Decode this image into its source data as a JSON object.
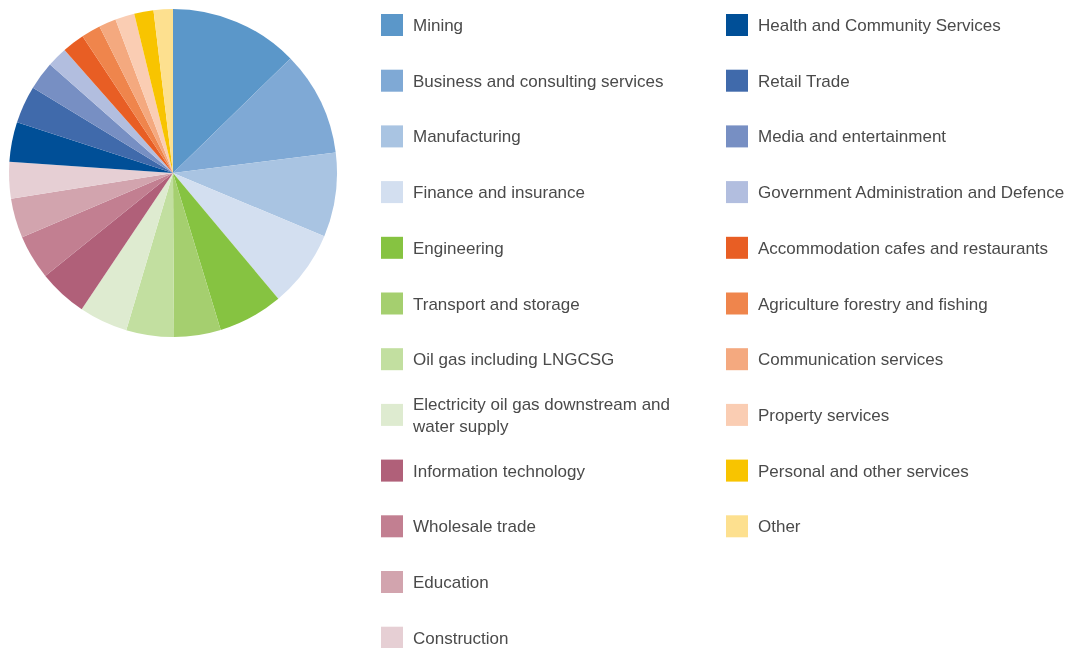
{
  "chart_data": {
    "type": "pie",
    "legend": "right",
    "categories": [
      "Mining",
      "Business and consulting services",
      "Manufacturing",
      "Finance and insurance",
      "Engineering",
      "Transport and storage",
      "Oil gas including LNGCSG",
      "Electricity oil gas downstream and water supply",
      "Information technology",
      "Wholesale trade",
      "Education",
      "Construction",
      "Health and Community Services",
      "Retail Trade",
      "Media and entertainment",
      "Government Administration and Defence",
      "Accommodation cafes and restaurants",
      "Agriculture forestry and fishing",
      "Communication services",
      "Property services",
      "Personal and other services",
      "Other"
    ],
    "values": [
      12.7,
      10.3,
      8.3,
      7.6,
      6.4,
      4.6,
      4.7,
      4.8,
      4.8,
      4.4,
      3.9,
      3.6,
      3.9,
      3.7,
      2.8,
      2.0,
      2.2,
      1.9,
      1.7,
      1.9,
      1.9,
      1.9
    ],
    "colors": [
      "#5b97c9",
      "#7fa9d5",
      "#a9c4e2",
      "#d3dff0",
      "#86c341",
      "#a5cf6f",
      "#c2dfa0",
      "#deebd0",
      "#b06079",
      "#c27f91",
      "#d2a4ae",
      "#e6cfd4",
      "#004f97",
      "#406aab",
      "#778fc3",
      "#b2bedf",
      "#e85e24",
      "#ef854c",
      "#f4a97f",
      "#facdb3",
      "#f8c400",
      "#fde08f"
    ]
  }
}
